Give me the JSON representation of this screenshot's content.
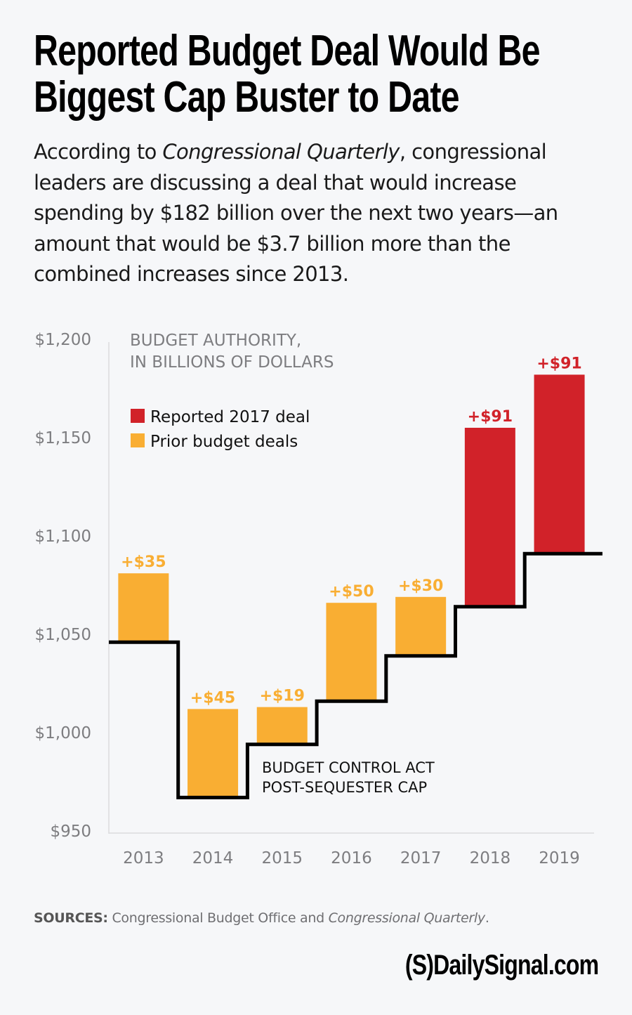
{
  "header": {
    "title_line1": "Reported Budget Deal Would Be",
    "title_line2": "Biggest Cap Buster to Date",
    "subtitle_part1": "According to ",
    "subtitle_italic": "Congressional Quarterly",
    "subtitle_part2": ", congressional leaders are discussing a deal that would increase spending by $182 billion over the next two years—an amount that would be $3.7 billion more than the combined increases since 2013."
  },
  "chart_data": {
    "type": "bar",
    "subtype": "stacked-floating-bar-with-step-line",
    "title": "BUDGET AUTHORITY, IN BILLIONS OF DOLLARS",
    "axis_title_line1": "BUDGET AUTHORITY,",
    "axis_title_line2": "IN BILLIONS OF DOLLARS",
    "xlabel": "",
    "ylabel": "",
    "ylim": [
      950,
      1200
    ],
    "yticks": [
      950,
      1000,
      1050,
      1100,
      1150,
      1200
    ],
    "ytick_labels": [
      "$950",
      "$1,000",
      "$1,050",
      "$1,100",
      "$1,150",
      "$1,200"
    ],
    "categories": [
      "2013",
      "2014",
      "2015",
      "2016",
      "2017",
      "2018",
      "2019"
    ],
    "cap_line": {
      "name": "Budget Control Act post-sequester cap",
      "label_line1": "BUDGET CONTROL ACT",
      "label_line2": "POST-SEQUESTER CAP",
      "values": [
        1046,
        967,
        994,
        1016,
        1039,
        1064,
        1091
      ]
    },
    "increases": [
      35,
      45,
      19,
      50,
      30,
      91,
      91
    ],
    "data_labels": [
      "+$35",
      "+$45",
      "+$19",
      "+$50",
      "+$30",
      "+$91",
      "+$91"
    ],
    "series_by_bar": [
      "Prior budget deals",
      "Prior budget deals",
      "Prior budget deals",
      "Prior budget deals",
      "Prior budget deals",
      "Reported 2017 deal",
      "Reported 2017 deal"
    ],
    "legend": [
      {
        "name": "Reported 2017 deal",
        "color": "#d12229"
      },
      {
        "name": "Prior budget deals",
        "color": "#f9ae33"
      }
    ],
    "legend_position": "top-left",
    "grid": false,
    "colors": {
      "prior": "#f9ae33",
      "reported": "#d12229",
      "cap_line": "#000000",
      "axis": "#dcdcde"
    }
  },
  "footer": {
    "sources_label": "SOURCES:",
    "sources_text": " Congressional Budget Office and ",
    "sources_italic": "Congressional Quarterly",
    "sources_end": ".",
    "logo": "(S)DailySignal.com"
  }
}
